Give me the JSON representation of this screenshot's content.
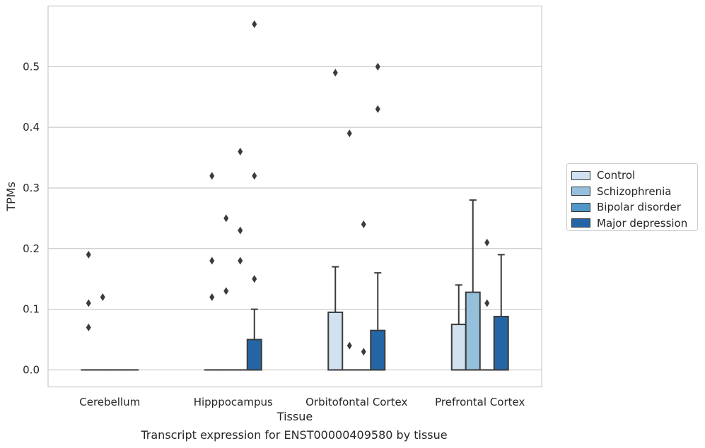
{
  "caption": "Transcript expression for ENST00000409580 by tissue",
  "chart_data": {
    "type": "box",
    "xlabel": "Tissue",
    "ylabel": "TPMs",
    "categories": [
      "Cerebellum",
      "Hipppocampus",
      "Orbitofontal Cortex",
      "Prefrontal Cortex"
    ],
    "ylim": [
      -0.028,
      0.6
    ],
    "yticks": [
      0.0,
      0.1,
      0.2,
      0.3,
      0.4,
      0.5
    ],
    "ytick_labels": [
      "0.0",
      "0.1",
      "0.2",
      "0.3",
      "0.4",
      "0.5"
    ],
    "grid": true,
    "legend_placement": "right",
    "series": [
      {
        "name": "Control",
        "color": "#d1e1ef",
        "boxes": [
          {
            "q1": 0,
            "median": 0,
            "q3": 0,
            "whisker_low": 0,
            "whisker_high": 0,
            "outliers": [
              0.19,
              0.11,
              0.07
            ]
          },
          {
            "q1": 0,
            "median": 0,
            "q3": 0,
            "whisker_low": 0,
            "whisker_high": 0,
            "outliers": [
              0.32,
              0.18,
              0.12
            ]
          },
          {
            "q1": 0,
            "median": 0,
            "q3": 0.095,
            "whisker_low": 0,
            "whisker_high": 0.17,
            "outliers": [
              0.49
            ]
          },
          {
            "q1": 0,
            "median": 0,
            "q3": 0.075,
            "whisker_low": 0,
            "whisker_high": 0.14,
            "outliers": []
          }
        ]
      },
      {
        "name": "Schizophrenia",
        "color": "#94c0dc",
        "boxes": [
          {
            "q1": 0,
            "median": 0,
            "q3": 0,
            "whisker_low": 0,
            "whisker_high": 0,
            "outliers": [
              0.12
            ]
          },
          {
            "q1": 0,
            "median": 0,
            "q3": 0,
            "whisker_low": 0,
            "whisker_high": 0,
            "outliers": [
              0.25,
              0.13
            ]
          },
          {
            "q1": 0,
            "median": 0,
            "q3": 0,
            "whisker_low": 0,
            "whisker_high": 0,
            "outliers": [
              0.39,
              0.04
            ]
          },
          {
            "q1": 0,
            "median": 0,
            "q3": 0.128,
            "whisker_low": 0,
            "whisker_high": 0.28,
            "outliers": []
          }
        ]
      },
      {
        "name": "Bipolar disorder",
        "color": "#5096c8",
        "boxes": [
          {
            "q1": 0,
            "median": 0,
            "q3": 0,
            "whisker_low": 0,
            "whisker_high": 0,
            "outliers": []
          },
          {
            "q1": 0,
            "median": 0,
            "q3": 0,
            "whisker_low": 0,
            "whisker_high": 0,
            "outliers": [
              0.36,
              0.23,
              0.18
            ]
          },
          {
            "q1": 0,
            "median": 0,
            "q3": 0,
            "whisker_low": 0,
            "whisker_high": 0,
            "outliers": [
              0.24,
              0.03
            ]
          },
          {
            "q1": 0,
            "median": 0,
            "q3": 0,
            "whisker_low": 0,
            "whisker_high": 0,
            "outliers": [
              0.21,
              0.11
            ]
          }
        ]
      },
      {
        "name": "Major depression",
        "color": "#2465a6",
        "boxes": [
          {
            "q1": 0,
            "median": 0,
            "q3": 0,
            "whisker_low": 0,
            "whisker_high": 0,
            "outliers": []
          },
          {
            "q1": 0,
            "median": 0,
            "q3": 0.05,
            "whisker_low": 0,
            "whisker_high": 0.1,
            "outliers": [
              0.57,
              0.32,
              0.15
            ]
          },
          {
            "q1": 0,
            "median": 0,
            "q3": 0.065,
            "whisker_low": 0,
            "whisker_high": 0.16,
            "outliers": [
              0.5,
              0.43
            ]
          },
          {
            "q1": 0,
            "median": 0,
            "q3": 0.088,
            "whisker_low": 0,
            "whisker_high": 0.19,
            "outliers": []
          }
        ]
      }
    ]
  }
}
